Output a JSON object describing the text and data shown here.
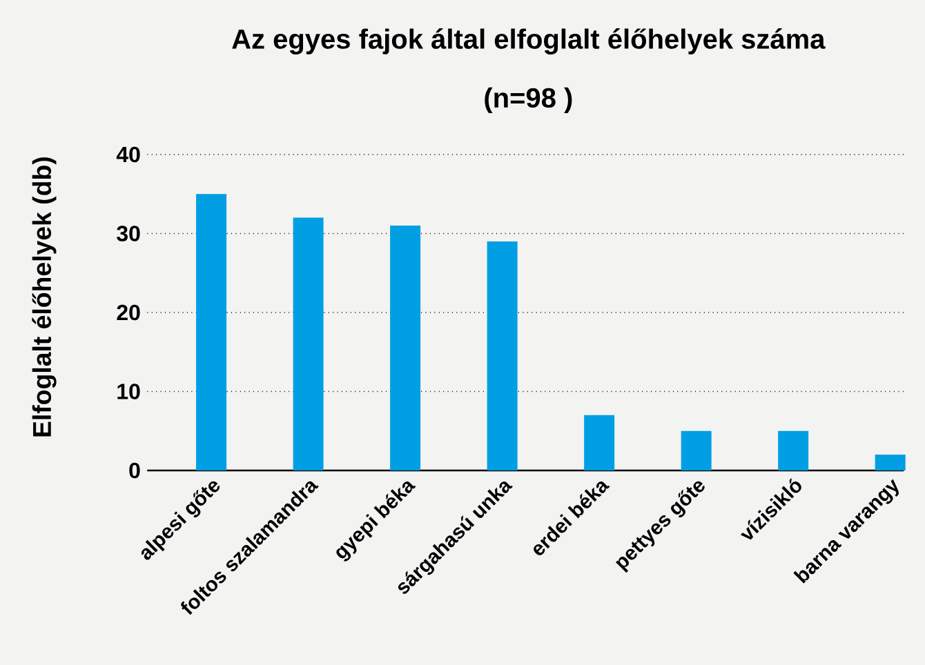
{
  "chart_data": {
    "type": "bar",
    "title": "Az egyes fajok által elfoglalt élőhelyek száma",
    "subtitle": "(n=98 )",
    "ylabel": "Elfoglalt élőhelyek (db)",
    "categories": [
      "alpesi gőte",
      "foltos szalamandra",
      "gyepi béka",
      "sárgahasú unka",
      "erdei béka",
      "pettyes gőte",
      "vízisikló",
      "barna varangy"
    ],
    "values": [
      35,
      32,
      31,
      29,
      7,
      5,
      5,
      2
    ],
    "color": "#009fe3",
    "ylim": [
      0,
      40
    ],
    "yticks": [
      0,
      10,
      20,
      30,
      40
    ],
    "grid": "y"
  }
}
